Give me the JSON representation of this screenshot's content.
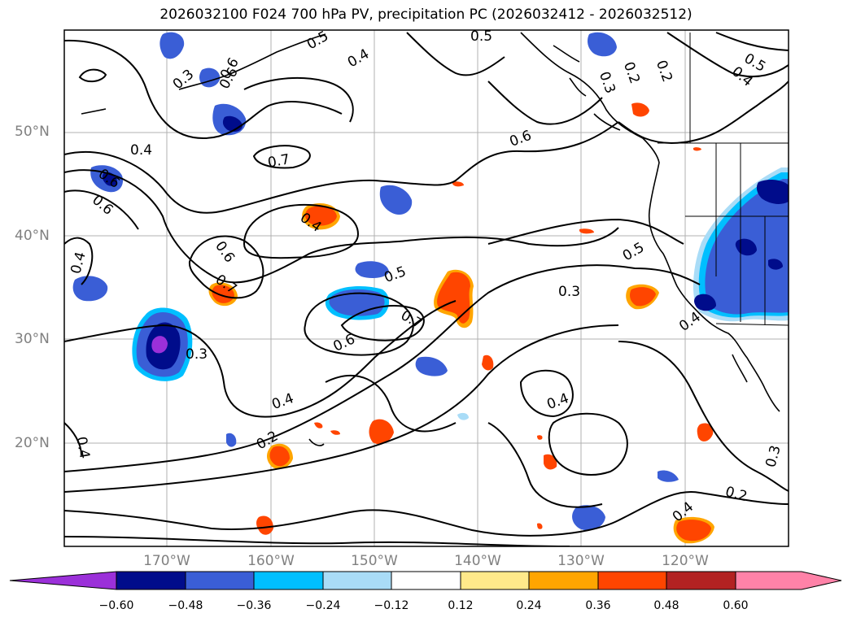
{
  "title": "2026032100 F024 700 hPa PV, precipitation PC (2026032412 - 2026032512)",
  "lat_labels": [
    "50°N",
    "40°N",
    "30°N",
    "20°N"
  ],
  "lon_labels": [
    "170°W",
    "160°W",
    "150°W",
    "140°W",
    "130°W",
    "120°W"
  ],
  "contour_labels": [
    "0.4",
    "0.3",
    "0.6",
    "0.4",
    "0.5",
    "0.6",
    "0.7",
    "0.4",
    "0.5",
    "0.6",
    "0.4",
    "0.6",
    "0.7",
    "0.3",
    "0.2",
    "0.4",
    "0.3",
    "0.6",
    "0.7",
    "0.4",
    "0.2",
    "0.3",
    "0.4",
    "0.5",
    "0.5",
    "0.4",
    "0.4",
    "0.3",
    "0.6",
    "0.5",
    "0.2",
    "0.4",
    "0.6",
    "0.2"
  ],
  "colorbar": {
    "ticks": [
      "−0.60",
      "−0.48",
      "−0.36",
      "−0.24",
      "−0.12",
      "0.12",
      "0.24",
      "0.36",
      "0.48",
      "0.60"
    ],
    "colors": [
      "#9b30d9",
      "#000c8b",
      "#3a5ed6",
      "#00bfff",
      "#a9dcf7",
      "#ffffff",
      "#ffe98a",
      "#ffa500",
      "#ff4500",
      "#b22222",
      "#ff82a8",
      "#f080c8"
    ]
  },
  "colors": {
    "neg_deep": "#000c8b",
    "neg_mid": "#3a5ed6",
    "neg_light": "#00bfff",
    "neg_pale": "#a9dcf7",
    "neg_purple": "#9b30d9",
    "pos_yellow": "#ffe98a",
    "pos_orange": "#ffa500",
    "pos_red": "#ff4500"
  }
}
